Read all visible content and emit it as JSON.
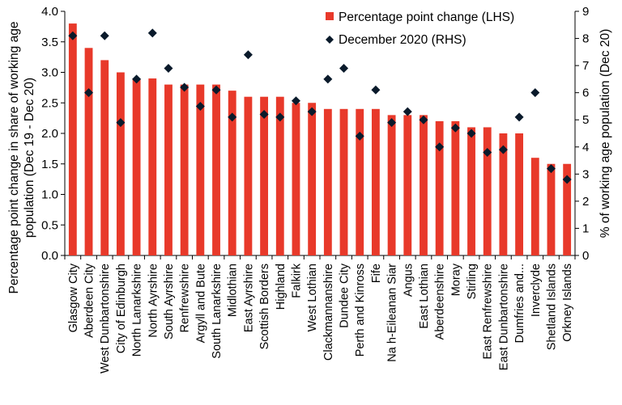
{
  "chart_data": {
    "type": "bar",
    "categories": [
      "Glasgow City",
      "Aberdeen City",
      "West Dunbartonshire",
      "City of Edinburgh",
      "North Lanarkshire",
      "North Ayrshire",
      "South Ayrshire",
      "Renfrewshire",
      "Argyll and Bute",
      "South Lanarkshire",
      "Midlothian",
      "East Ayrshire",
      "Scottish Borders",
      "Highland",
      "Falkirk",
      "West Lothian",
      "Clackmannanshire",
      "Dundee City",
      "Perth and Kinross",
      "Fife",
      "Na h-Eileanan Siar",
      "Angus",
      "East Lothian",
      "Aberdeenshire",
      "Moray",
      "Stirling",
      "East Renfrewshire",
      "East Dunbartonshire",
      "Dumfries and...",
      "Inverclyde",
      "Shetland Islands",
      "Orkney Islands"
    ],
    "series": [
      {
        "name": "Percentage point change (LHS)",
        "axis": "left",
        "type": "bar",
        "color": "#e8392a",
        "values": [
          3.8,
          3.4,
          3.2,
          3.0,
          2.9,
          2.9,
          2.8,
          2.8,
          2.8,
          2.8,
          2.7,
          2.6,
          2.6,
          2.6,
          2.5,
          2.5,
          2.4,
          2.4,
          2.4,
          2.4,
          2.3,
          2.3,
          2.3,
          2.2,
          2.2,
          2.1,
          2.1,
          2.0,
          2.0,
          1.6,
          1.5,
          1.5
        ]
      },
      {
        "name": "December 2020 (RHS)",
        "axis": "right",
        "type": "scatter",
        "marker": "diamond",
        "color": "#0a1a2b",
        "values": [
          8.1,
          6.0,
          8.1,
          4.9,
          6.5,
          8.2,
          6.9,
          6.2,
          5.5,
          6.1,
          5.1,
          7.4,
          5.2,
          5.1,
          5.7,
          5.3,
          6.5,
          6.9,
          4.4,
          6.1,
          4.9,
          5.3,
          5.0,
          4.0,
          4.7,
          4.5,
          3.8,
          3.9,
          5.1,
          6.0,
          3.2,
          2.8
        ]
      }
    ],
    "ylabel": "Percentage point change in share of working age population (Dec 19 - Dec 20)",
    "ylabel_lines": [
      "Percentage point change in share of working age",
      "population (Dec 19 - Dec 20)"
    ],
    "y2label": "% of working age population (Dec 20)",
    "ylim": [
      0,
      4.0
    ],
    "y2lim": [
      0,
      9
    ],
    "yticks": [
      "0.0",
      "0.5",
      "1.0",
      "1.5",
      "2.0",
      "2.5",
      "3.0",
      "3.5",
      "4.0"
    ],
    "y2ticks": [
      "0",
      "1",
      "2",
      "3",
      "4",
      "5",
      "6",
      "7",
      "8",
      "9"
    ],
    "grid": false,
    "legend_position": "top-right"
  }
}
